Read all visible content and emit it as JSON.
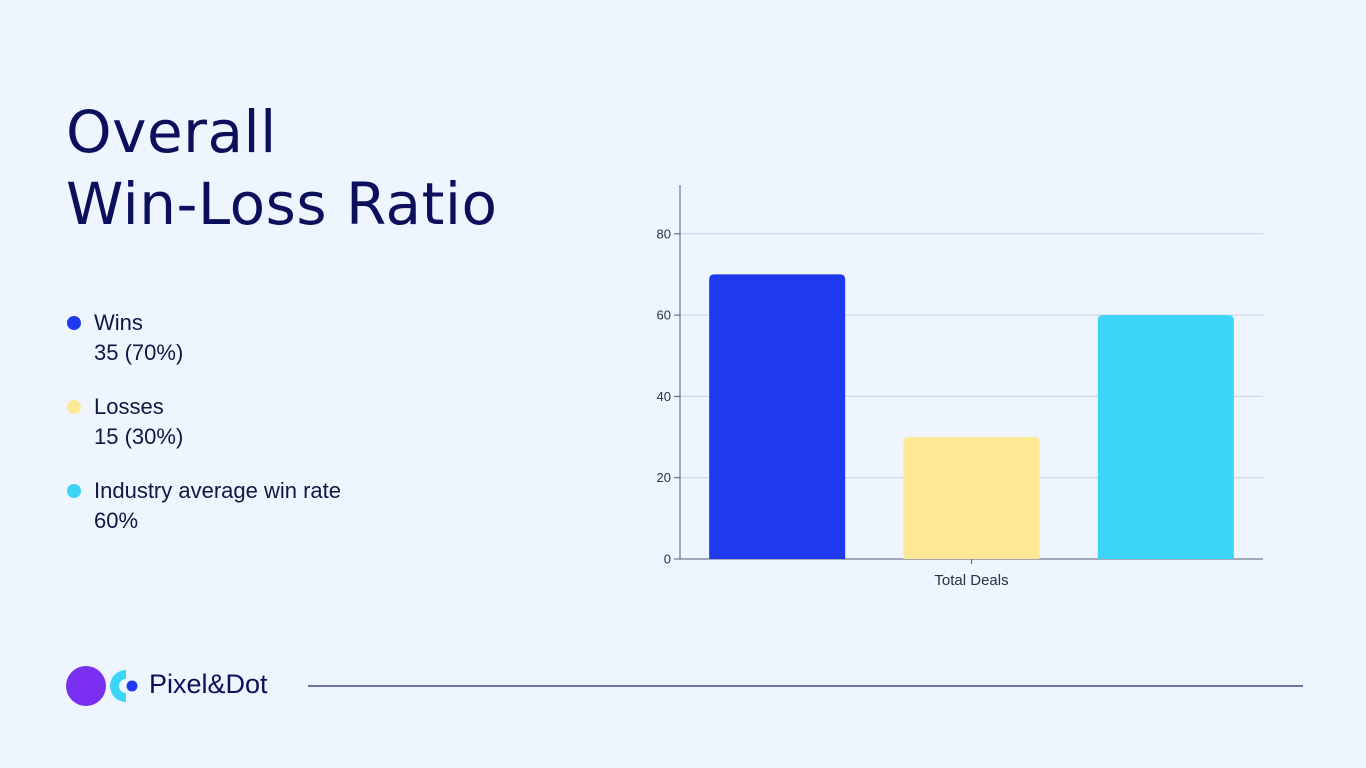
{
  "slide": {
    "title_line1": "Overall",
    "title_line2": "Win-Loss Ratio"
  },
  "legend": [
    {
      "label": "Wins",
      "value": "35 (70%)",
      "color": "#1f3aee"
    },
    {
      "label": "Losses",
      "value": "15 (30%)",
      "color": "#fde896"
    },
    {
      "label": "Industry average win rate",
      "value": "60%",
      "color": "#3dd5f7"
    }
  ],
  "chart_data": {
    "type": "bar",
    "categories": [
      "Total Deals"
    ],
    "series": [
      {
        "values": [
          70
        ],
        "color": "#1f3aee"
      },
      {
        "values": [
          30
        ],
        "color": "#fde896"
      },
      {
        "values": [
          60
        ],
        "color": "#3dd5f7"
      }
    ],
    "yticks": [
      0,
      20,
      40,
      60,
      80
    ],
    "ylim": [
      0,
      92
    ],
    "grid": true
  },
  "footer": {
    "brand": "Pixel&Dot",
    "logo_icon": "pixel-dot-logo-icon",
    "logo_colors": [
      "#7b2ff0",
      "#3dd5f7",
      "#1f3aee"
    ]
  }
}
